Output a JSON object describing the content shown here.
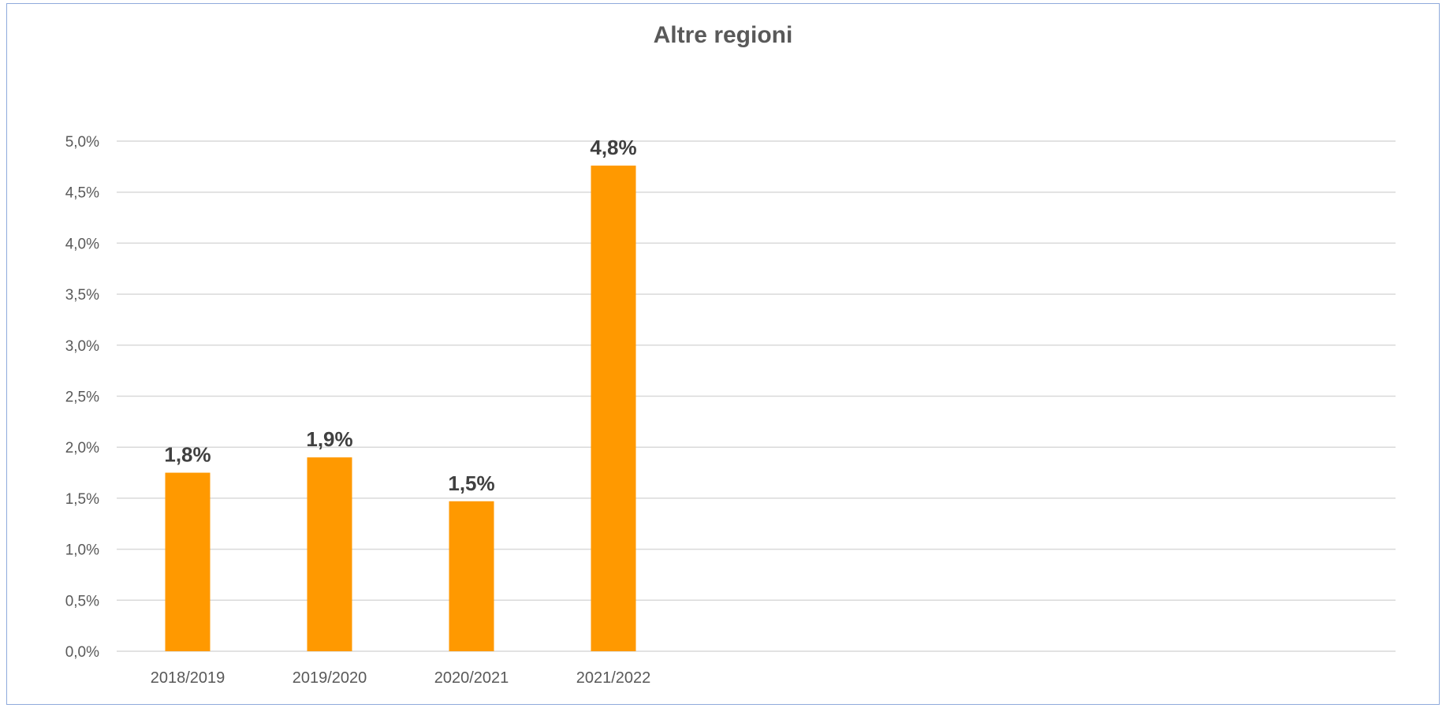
{
  "chart_data": {
    "type": "bar",
    "title": "Altre regioni",
    "categories": [
      "2018/2019",
      "2019/2020",
      "2020/2021",
      "2021/2022"
    ],
    "values": [
      1.75,
      1.9,
      1.47,
      4.76
    ],
    "data_labels": [
      "1,8%",
      "1,9%",
      "1,5%",
      "4,8%"
    ],
    "ylim": [
      0,
      5
    ],
    "yticks": [
      0,
      0.5,
      1,
      1.5,
      2,
      2.5,
      3,
      3.5,
      4,
      4.5,
      5
    ],
    "ytick_labels": [
      "0,0%",
      "0,5%",
      "1,0%",
      "1,5%",
      "2,0%",
      "2,5%",
      "3,0%",
      "3,5%",
      "4,0%",
      "4,5%",
      "5,0%"
    ],
    "xlabel": "",
    "ylabel": "",
    "grid": true,
    "legend": "none",
    "colors": {
      "bar": "#ff9900",
      "grid": "#d9d9d9",
      "text": "#595959",
      "data_label": "#404040",
      "frame": "#8faadc"
    }
  }
}
